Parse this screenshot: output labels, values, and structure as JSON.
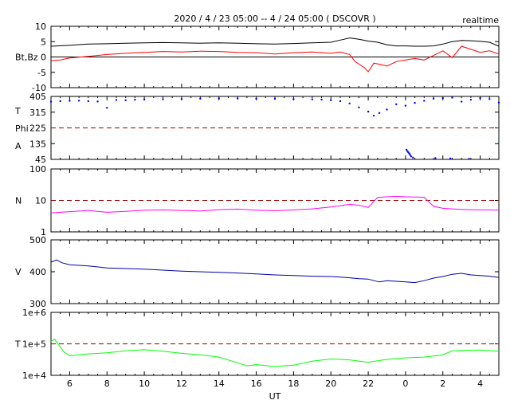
{
  "title": "2020 / 4 / 23   05:00 --  4 / 24   05:00 ( DSCOVR )",
  "status": "realtime",
  "x_axis": {
    "label": "UT",
    "ticks": [
      "6",
      "8",
      "10",
      "12",
      "14",
      "16",
      "18",
      "20",
      "22",
      "0",
      "2",
      "4"
    ],
    "range_hours": [
      5,
      29
    ]
  },
  "chart_data": [
    {
      "type": "line",
      "panel": "magnetic-field",
      "ylabel": "Bt,Bz",
      "ylim": [
        -10,
        10
      ],
      "yticks": [
        "10",
        "5",
        "0",
        "-5",
        "-10"
      ],
      "zero_line": 0,
      "series": [
        {
          "name": "Bt",
          "color": "#000000",
          "x": [
            5,
            6,
            7,
            8,
            9,
            10,
            11,
            12,
            13,
            14,
            15,
            16,
            17,
            18,
            19,
            20,
            20.5,
            21,
            21.5,
            22,
            22.5,
            23,
            23.5,
            24,
            24.5,
            25,
            25.5,
            26,
            26.5,
            27,
            27.5,
            28,
            28.5,
            29
          ],
          "y": [
            3.5,
            3.8,
            4.2,
            4.3,
            4.5,
            4.6,
            4.7,
            4.6,
            4.5,
            4.6,
            4.5,
            4.3,
            4.2,
            4.4,
            4.6,
            4.8,
            5.5,
            6.2,
            5.8,
            5.2,
            4.8,
            4.0,
            3.6,
            3.6,
            3.5,
            3.5,
            3.6,
            4.2,
            5.0,
            5.4,
            5.3,
            5.1,
            4.8,
            3.5
          ]
        },
        {
          "name": "Bz",
          "color": "#ff0000",
          "x": [
            5,
            5.5,
            6,
            7,
            8,
            9,
            10,
            11,
            12,
            13,
            14,
            15,
            16,
            17,
            18,
            19,
            20,
            20.5,
            21,
            21.3,
            21.8,
            22,
            22.3,
            22.7,
            23,
            23.5,
            24,
            24.5,
            25,
            25.5,
            26,
            26.5,
            27,
            27.5,
            28,
            28.5,
            29
          ],
          "y": [
            -1.2,
            -1.0,
            -0.3,
            0.2,
            0.8,
            1.2,
            1.5,
            1.8,
            1.6,
            1.9,
            1.8,
            1.5,
            1.4,
            1.0,
            1.4,
            1.6,
            1.2,
            1.6,
            0.8,
            -1.5,
            -3.5,
            -4.8,
            -2.0,
            -2.5,
            -3.0,
            -1.5,
            -1.0,
            -0.5,
            -1.0,
            0.5,
            2.0,
            -0.2,
            3.5,
            2.5,
            1.5,
            2.0,
            1.0
          ]
        }
      ]
    },
    {
      "type": "scatter",
      "panel": "temperature-phi",
      "ylabel_lines": [
        "T",
        "Phi",
        "A"
      ],
      "ylim": [
        45,
        405
      ],
      "yticks": [
        "405",
        "315",
        "225",
        "135",
        "45"
      ],
      "reference_line": 225,
      "series": [
        {
          "name": "Phi",
          "color": "#0000ff",
          "x": [
            5,
            5.5,
            6,
            6.5,
            7,
            7.5,
            8,
            8.5,
            9,
            9.5,
            10,
            11,
            12,
            13,
            14,
            15,
            16,
            17,
            18,
            19,
            19.5,
            20,
            20.5,
            21,
            21.5,
            22,
            22.3,
            22.6,
            23,
            23.5,
            24,
            24.5,
            25,
            25.5,
            26,
            26.5,
            27,
            27.5,
            28,
            28.5,
            29
          ],
          "y": [
            375,
            378,
            380,
            381,
            378,
            376,
            340,
            385,
            383,
            386,
            387,
            389,
            390,
            392,
            394,
            393,
            392,
            391,
            389,
            388,
            387,
            383,
            378,
            365,
            342,
            318,
            295,
            310,
            330,
            360,
            352,
            368,
            380,
            392,
            395,
            398,
            375,
            386,
            396,
            390,
            370
          ]
        },
        {
          "name": "Phi-low",
          "color": "#0000ff",
          "x": [
            24.05,
            24.1,
            24.15,
            24.2,
            24.25,
            24.3,
            24.4,
            25.6,
            26.4,
            27.4
          ],
          "y": [
            100,
            92,
            85,
            78,
            70,
            62,
            55,
            52,
            50,
            48
          ]
        }
      ]
    },
    {
      "type": "line",
      "panel": "density",
      "ylabel": "N",
      "ylim": [
        1,
        100
      ],
      "scale": "log",
      "yticks": [
        "100",
        "10",
        "1"
      ],
      "reference_line": 10,
      "series": [
        {
          "name": "N",
          "color": "#ff00ff",
          "x": [
            5,
            6,
            7,
            8,
            9,
            10,
            11,
            12,
            13,
            14,
            15,
            16,
            17,
            18,
            19,
            20,
            20.5,
            21,
            21.5,
            22,
            22.5,
            23,
            23.5,
            24,
            24.5,
            25,
            25.5,
            26,
            26.5,
            27,
            27.5,
            28,
            28.5,
            29
          ],
          "y": [
            4.0,
            4.4,
            4.8,
            4.2,
            4.5,
            4.9,
            5.0,
            4.8,
            4.6,
            5.1,
            5.3,
            4.9,
            4.7,
            5.0,
            5.4,
            6.2,
            6.8,
            7.5,
            7.0,
            6.0,
            12.5,
            13.0,
            13.4,
            13.0,
            12.8,
            12.6,
            6.5,
            5.6,
            5.4,
            5.2,
            5.1,
            5.0,
            5.0,
            4.9
          ]
        }
      ]
    },
    {
      "type": "line",
      "panel": "velocity",
      "ylabel": "V",
      "ylim": [
        300,
        500
      ],
      "yticks": [
        "500",
        "400",
        "300"
      ],
      "series": [
        {
          "name": "V",
          "color": "#0000aa",
          "x": [
            5,
            5.3,
            5.6,
            6,
            7,
            8,
            9,
            10,
            11,
            12,
            13,
            14,
            15,
            16,
            17,
            18,
            19,
            20,
            20.5,
            21,
            21.5,
            22,
            22.3,
            22.6,
            23,
            23.5,
            24,
            24.5,
            25,
            25.5,
            26,
            26.5,
            27,
            27.5,
            28,
            28.5,
            29
          ],
          "y": [
            430,
            437,
            428,
            422,
            418,
            412,
            410,
            408,
            405,
            402,
            400,
            398,
            396,
            393,
            390,
            388,
            386,
            385,
            383,
            381,
            378,
            377,
            372,
            368,
            372,
            370,
            368,
            366,
            372,
            380,
            385,
            392,
            395,
            390,
            388,
            386,
            382
          ]
        }
      ]
    },
    {
      "type": "line",
      "panel": "temperature",
      "ylabel": "T",
      "ylim": [
        10000,
        1000000
      ],
      "scale": "log",
      "yticks": [
        "1e+6",
        "1e+5",
        "1e+4"
      ],
      "reference_line": 100000,
      "series": [
        {
          "name": "T",
          "color": "#00ff00",
          "x": [
            5,
            5.2,
            5.4,
            5.7,
            6,
            7,
            8,
            9,
            10,
            11,
            12,
            13,
            14,
            15,
            15.5,
            16,
            17,
            18,
            19,
            20,
            21,
            22,
            23,
            24,
            25,
            26,
            26.5,
            27,
            28,
            29
          ],
          "y": [
            120000,
            140000,
            95000,
            55000,
            42000,
            48000,
            52000,
            60000,
            65000,
            58000,
            50000,
            45000,
            38000,
            25000,
            20000,
            22000,
            19000,
            21000,
            28000,
            33000,
            31000,
            26000,
            32000,
            36000,
            38000,
            45000,
            60000,
            62000,
            64000,
            58000
          ]
        }
      ]
    }
  ]
}
